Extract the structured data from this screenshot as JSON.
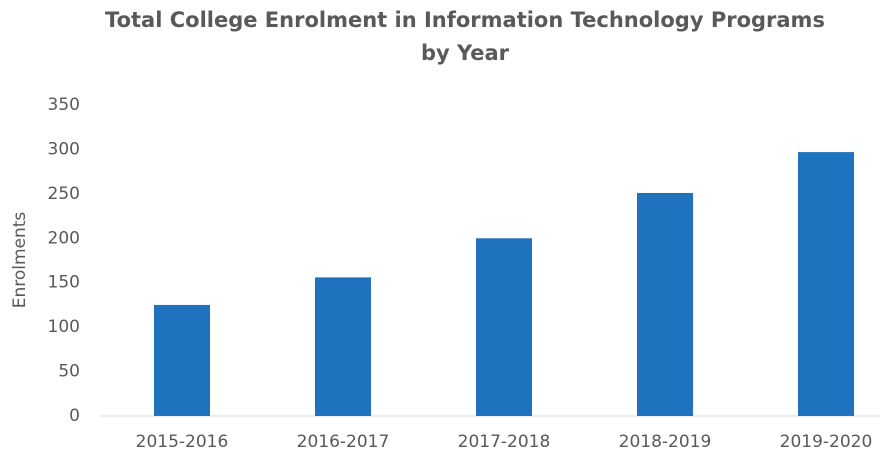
{
  "chart_data": {
    "type": "bar",
    "title": "Total College Enrolment in Information Technology Programs by Year",
    "y_label": "Enrolments",
    "categories": [
      "2015-2016",
      "2016-2017",
      "2017-2018",
      "2018-2019",
      "2019-2020"
    ],
    "values": [
      125,
      156,
      200,
      251,
      297
    ],
    "color": "#1f72bd",
    "ylim": [
      0,
      350
    ],
    "yticks": [
      0,
      50,
      100,
      150,
      200,
      250,
      300,
      350
    ],
    "grid": false
  }
}
